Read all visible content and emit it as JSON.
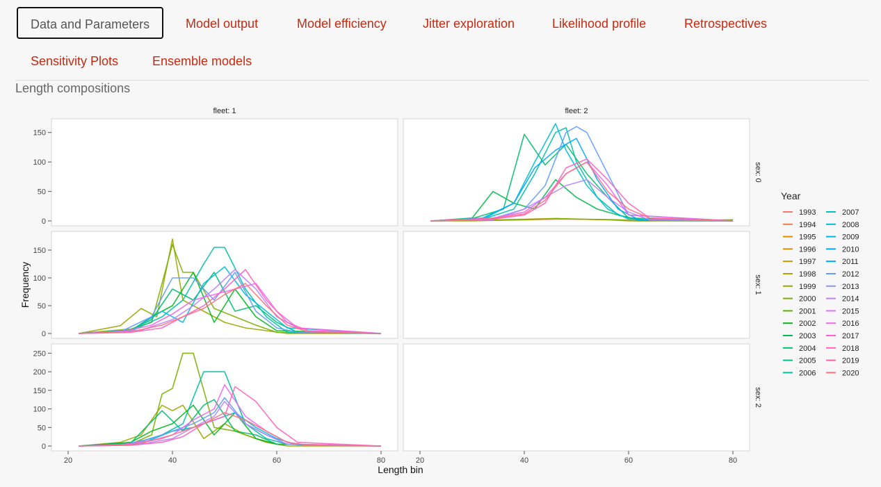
{
  "tabs": [
    {
      "label": "Data and Parameters",
      "active": true
    },
    {
      "label": "Model output"
    },
    {
      "label": "Model efficiency"
    },
    {
      "label": "Jitter exploration"
    },
    {
      "label": "Likelihood profile"
    },
    {
      "label": "Retrospectives"
    },
    {
      "label": "Sensitivity Plots"
    },
    {
      "label": "Ensemble models"
    }
  ],
  "section_title": "Length compositions",
  "chart_data": {
    "type": "line",
    "title": "",
    "xlabel": "Length bin",
    "ylabel": "Frequency",
    "legend_title": "Year",
    "legend_position": "right",
    "grid": false,
    "facet_columns": [
      "fleet: 1",
      "fleet: 2"
    ],
    "facet_rows": [
      "sex: 0",
      "sex: 1",
      "sex: 2"
    ],
    "xlim": [
      20,
      80
    ],
    "x_ticks": [
      20,
      40,
      60,
      80
    ],
    "rows": [
      {
        "ylim": [
          0,
          165
        ],
        "y_ticks": [
          0,
          50,
          100,
          150
        ]
      },
      {
        "ylim": [
          0,
          175
        ],
        "y_ticks": [
          0,
          50,
          100,
          150
        ]
      },
      {
        "ylim": [
          0,
          262
        ],
        "y_ticks": [
          0,
          50,
          100,
          150,
          200,
          250
        ]
      }
    ],
    "years": [
      "1993",
      "1994",
      "1995",
      "1996",
      "1997",
      "1998",
      "1999",
      "2000",
      "2001",
      "2002",
      "2003",
      "2004",
      "2005",
      "2006",
      "2007",
      "2008",
      "2009",
      "2010",
      "2011",
      "2012",
      "2013",
      "2014",
      "2015",
      "2016",
      "2017",
      "2018",
      "2019",
      "2020"
    ],
    "colors": [
      "#f8766d",
      "#f07e4c",
      "#e38900",
      "#d39200",
      "#c49a00",
      "#b0a200",
      "#98a900",
      "#7cae00",
      "#5bb300",
      "#00b81f",
      "#00bb4e",
      "#00be70",
      "#00bf8c",
      "#00c0a5",
      "#00bfbc",
      "#00bcd8",
      "#00b4ef",
      "#00a9ff",
      "#00a5ff",
      "#619cff",
      "#8f91ff",
      "#b983ff",
      "#db72fb",
      "#f066ea",
      "#fb61d7",
      "#ff62bc",
      "#ff65a5",
      "#fc717f"
    ],
    "panels": [
      {
        "row": 0,
        "col": 0,
        "series": []
      },
      {
        "row": 0,
        "col": 1,
        "series": [
          {
            "year": "1994",
            "x": [
              22,
              30,
              40,
              46,
              50,
              56,
              60,
              80
            ],
            "y": [
              0,
              1,
              2,
              3,
              3,
              2,
              1,
              0
            ]
          },
          {
            "year": "1997",
            "x": [
              22,
              30,
              40,
              46,
              50,
              56,
              60,
              80
            ],
            "y": [
              0,
              1,
              3,
              4,
              3,
              2,
              0,
              0
            ]
          },
          {
            "year": "2000",
            "x": [
              22,
              30,
              40,
              46,
              52,
              58,
              62,
              80
            ],
            "y": [
              0,
              0,
              2,
              4,
              3,
              2,
              0,
              2
            ]
          },
          {
            "year": "2003",
            "x": [
              22,
              30,
              34,
              38,
              42,
              46,
              50,
              54,
              58,
              62,
              80
            ],
            "y": [
              0,
              5,
              50,
              30,
              20,
              70,
              40,
              20,
              10,
              2,
              0
            ]
          },
          {
            "year": "2004",
            "x": [
              22,
              30,
              36,
              40,
              44,
              48,
              52,
              56,
              60,
              80
            ],
            "y": [
              0,
              4,
              20,
              147,
              95,
              130,
              80,
              40,
              5,
              0
            ]
          },
          {
            "year": "2006",
            "x": [
              22,
              32,
              38,
              42,
              46,
              48,
              50,
              54,
              58,
              62,
              80
            ],
            "y": [
              0,
              3,
              20,
              80,
              150,
              158,
              100,
              40,
              10,
              1,
              0
            ]
          },
          {
            "year": "2008",
            "x": [
              22,
              32,
              38,
              42,
              46,
              48,
              52,
              56,
              60,
              80
            ],
            "y": [
              0,
              5,
              30,
              100,
              165,
              120,
              60,
              20,
              3,
              0
            ]
          },
          {
            "year": "2010",
            "x": [
              22,
              32,
              38,
              42,
              46,
              50,
              54,
              58,
              62,
              80
            ],
            "y": [
              0,
              3,
              30,
              90,
              120,
              140,
              70,
              20,
              2,
              0
            ]
          },
          {
            "year": "2012",
            "x": [
              22,
              34,
              40,
              44,
              48,
              50,
              52,
              56,
              60,
              80
            ],
            "y": [
              0,
              4,
              20,
              60,
              150,
              160,
              150,
              80,
              10,
              0
            ]
          },
          {
            "year": "2014",
            "x": [
              22,
              34,
              40,
              44,
              48,
              52,
              56,
              60,
              64,
              80
            ],
            "y": [
              0,
              2,
              20,
              40,
              60,
              70,
              40,
              15,
              2,
              0
            ]
          },
          {
            "year": "2016",
            "x": [
              22,
              34,
              40,
              44,
              48,
              52,
              56,
              60,
              80
            ],
            "y": [
              0,
              5,
              15,
              40,
              80,
              100,
              60,
              10,
              0
            ]
          },
          {
            "year": "2018",
            "x": [
              22,
              34,
              40,
              44,
              48,
              52,
              56,
              60,
              64,
              80
            ],
            "y": [
              0,
              3,
              10,
              30,
              90,
              105,
              70,
              30,
              5,
              0
            ]
          },
          {
            "year": "2020",
            "x": [
              22,
              34,
              40,
              44,
              48,
              52,
              56,
              60,
              64,
              80
            ],
            "y": [
              0,
              4,
              12,
              35,
              80,
              100,
              50,
              20,
              5,
              0
            ]
          }
        ]
      },
      {
        "row": 1,
        "col": 0,
        "series": [
          {
            "year": "1999",
            "x": [
              22,
              30,
              34,
              37,
              40,
              42,
              46,
              50,
              54,
              58,
              62,
              80
            ],
            "y": [
              0,
              14,
              45,
              30,
              170,
              60,
              40,
              20,
              10,
              5,
              0,
              0
            ]
          },
          {
            "year": "2000",
            "x": [
              22,
              32,
              36,
              40,
              42,
              44,
              48,
              52,
              56,
              60,
              80
            ],
            "y": [
              0,
              8,
              20,
              160,
              110,
              110,
              45,
              30,
              15,
              2,
              0
            ]
          },
          {
            "year": "2002",
            "x": [
              22,
              32,
              36,
              40,
              44,
              48,
              52,
              56,
              60,
              80
            ],
            "y": [
              0,
              5,
              30,
              50,
              110,
              20,
              80,
              30,
              5,
              0
            ]
          },
          {
            "year": "2004",
            "x": [
              22,
              32,
              36,
              40,
              44,
              48,
              52,
              56,
              60,
              64,
              80
            ],
            "y": [
              0,
              6,
              25,
              80,
              60,
              110,
              40,
              50,
              20,
              2,
              0
            ]
          },
          {
            "year": "2006",
            "x": [
              22,
              32,
              38,
              42,
              46,
              48,
              50,
              54,
              58,
              62,
              80
            ],
            "y": [
              0,
              4,
              30,
              60,
              125,
              155,
              155,
              80,
              30,
              2,
              0
            ]
          },
          {
            "year": "2008",
            "x": [
              22,
              32,
              38,
              42,
              46,
              50,
              54,
              58,
              62,
              80
            ],
            "y": [
              0,
              5,
              40,
              20,
              90,
              120,
              70,
              40,
              10,
              0
            ]
          },
          {
            "year": "2012",
            "x": [
              22,
              30,
              36,
              40,
              44,
              48,
              52,
              56,
              60,
              64,
              80
            ],
            "y": [
              0,
              3,
              30,
              100,
              100,
              60,
              110,
              40,
              10,
              2,
              0
            ]
          },
          {
            "year": "2014",
            "x": [
              22,
              34,
              40,
              44,
              48,
              52,
              56,
              60,
              64,
              80
            ],
            "y": [
              0,
              6,
              25,
              50,
              80,
              115,
              80,
              30,
              10,
              0
            ]
          },
          {
            "year": "2016",
            "x": [
              22,
              30,
              36,
              40,
              44,
              48,
              52,
              56,
              60,
              64,
              80
            ],
            "y": [
              0,
              2,
              15,
              35,
              60,
              70,
              80,
              90,
              40,
              10,
              0
            ]
          },
          {
            "year": "2018",
            "x": [
              22,
              32,
              38,
              42,
              46,
              50,
              54,
              58,
              62,
              66,
              80
            ],
            "y": [
              0,
              2,
              10,
              30,
              50,
              80,
              115,
              60,
              20,
              5,
              0
            ]
          },
          {
            "year": "2020",
            "x": [
              22,
              32,
              38,
              42,
              46,
              50,
              54,
              58,
              62,
              66,
              80
            ],
            "y": [
              0,
              3,
              15,
              30,
              45,
              70,
              90,
              50,
              15,
              3,
              0
            ]
          }
        ]
      },
      {
        "row": 1,
        "col": 1,
        "series": []
      },
      {
        "row": 2,
        "col": 0,
        "series": [
          {
            "year": "1999",
            "x": [
              22,
              30,
              34,
              38,
              40,
              42,
              46,
              50,
              54,
              58,
              62,
              80
            ],
            "y": [
              0,
              10,
              30,
              110,
              95,
              110,
              20,
              60,
              30,
              10,
              0,
              0
            ]
          },
          {
            "year": "2000",
            "x": [
              22,
              32,
              36,
              38,
              40,
              42,
              44,
              48,
              52,
              56,
              60,
              80
            ],
            "y": [
              0,
              5,
              30,
              140,
              155,
              250,
              250,
              50,
              40,
              20,
              5,
              0
            ]
          },
          {
            "year": "2002",
            "x": [
              22,
              32,
              36,
              40,
              44,
              48,
              52,
              56,
              60,
              80
            ],
            "y": [
              0,
              10,
              40,
              60,
              110,
              30,
              90,
              20,
              5,
              0
            ]
          },
          {
            "year": "2004",
            "x": [
              22,
              32,
              38,
              42,
              46,
              48,
              52,
              56,
              60,
              80
            ],
            "y": [
              0,
              8,
              95,
              40,
              110,
              125,
              40,
              30,
              5,
              0
            ]
          },
          {
            "year": "2006",
            "x": [
              22,
              32,
              38,
              42,
              46,
              50,
              54,
              58,
              62,
              80
            ],
            "y": [
              0,
              4,
              30,
              60,
              200,
              200,
              60,
              20,
              5,
              0
            ]
          },
          {
            "year": "2008",
            "x": [
              22,
              34,
              40,
              44,
              48,
              52,
              56,
              60,
              64,
              80
            ],
            "y": [
              0,
              6,
              40,
              50,
              70,
              90,
              50,
              20,
              3,
              0
            ]
          },
          {
            "year": "2012",
            "x": [
              22,
              30,
              36,
              40,
              44,
              48,
              50,
              54,
              58,
              62,
              80
            ],
            "y": [
              0,
              2,
              20,
              40,
              60,
              90,
              130,
              60,
              30,
              5,
              0
            ]
          },
          {
            "year": "2014",
            "x": [
              22,
              34,
              40,
              44,
              48,
              50,
              54,
              58,
              62,
              80
            ],
            "y": [
              0,
              5,
              20,
              50,
              80,
              120,
              60,
              30,
              5,
              0
            ]
          },
          {
            "year": "2016",
            "x": [
              22,
              30,
              36,
              40,
              44,
              48,
              50,
              54,
              58,
              62,
              66,
              80
            ],
            "y": [
              0,
              3,
              15,
              30,
              70,
              100,
              165,
              80,
              40,
              10,
              2,
              0
            ]
          },
          {
            "year": "2018",
            "x": [
              22,
              32,
              38,
              42,
              46,
              50,
              52,
              56,
              60,
              64,
              80
            ],
            "y": [
              0,
              2,
              10,
              25,
              60,
              80,
              160,
              120,
              50,
              10,
              0
            ]
          },
          {
            "year": "2020",
            "x": [
              22,
              32,
              38,
              42,
              46,
              50,
              54,
              58,
              62,
              66,
              80
            ],
            "y": [
              0,
              3,
              20,
              40,
              60,
              90,
              70,
              40,
              10,
              2,
              0
            ]
          }
        ]
      },
      {
        "row": 2,
        "col": 1,
        "series": []
      }
    ]
  }
}
